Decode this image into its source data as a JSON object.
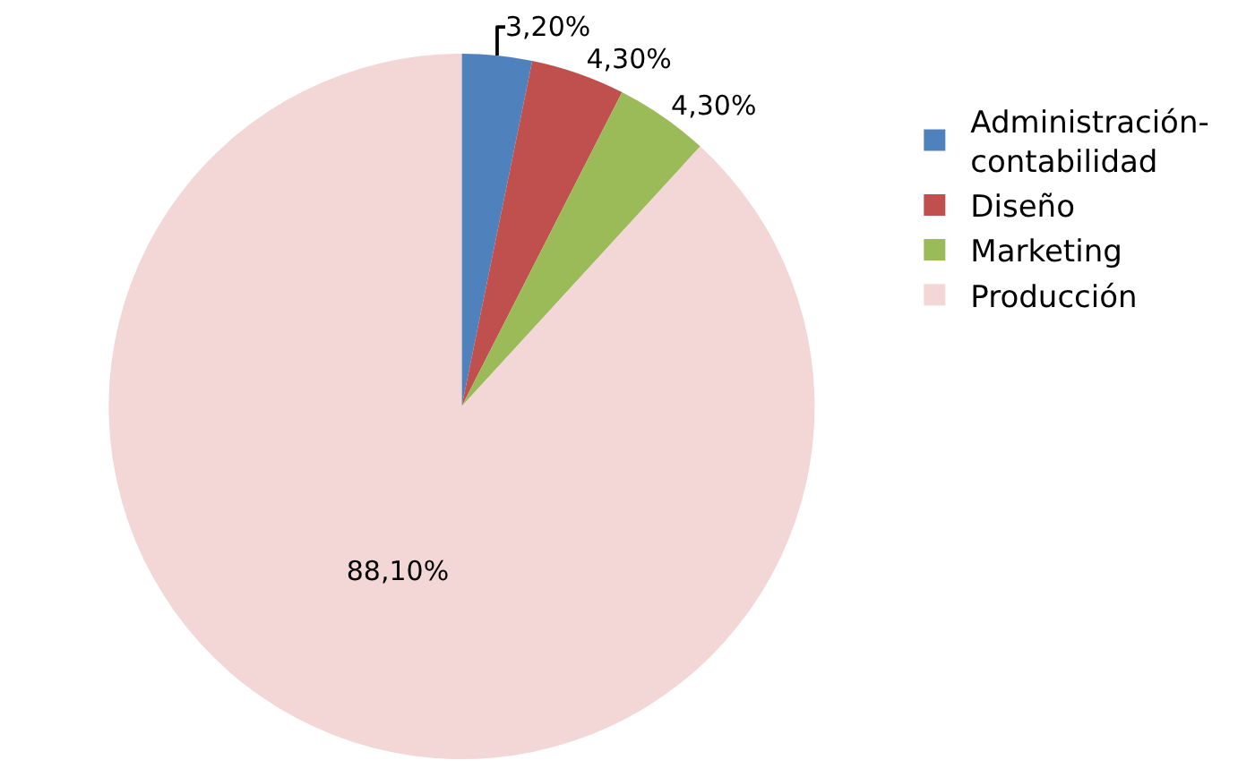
{
  "chart_data": {
    "type": "pie",
    "categories": [
      "Administración-contabilidad",
      "Diseño",
      "Marketing",
      "Producción"
    ],
    "values": [
      3.2,
      4.3,
      4.3,
      88.1
    ],
    "colors": [
      "#4f81bd",
      "#c0504d",
      "#9bbb59",
      "#f2d7d6"
    ],
    "value_labels": [
      "3,20%",
      "4,30%",
      "4,30%",
      "88,10%"
    ],
    "legend": "right"
  }
}
